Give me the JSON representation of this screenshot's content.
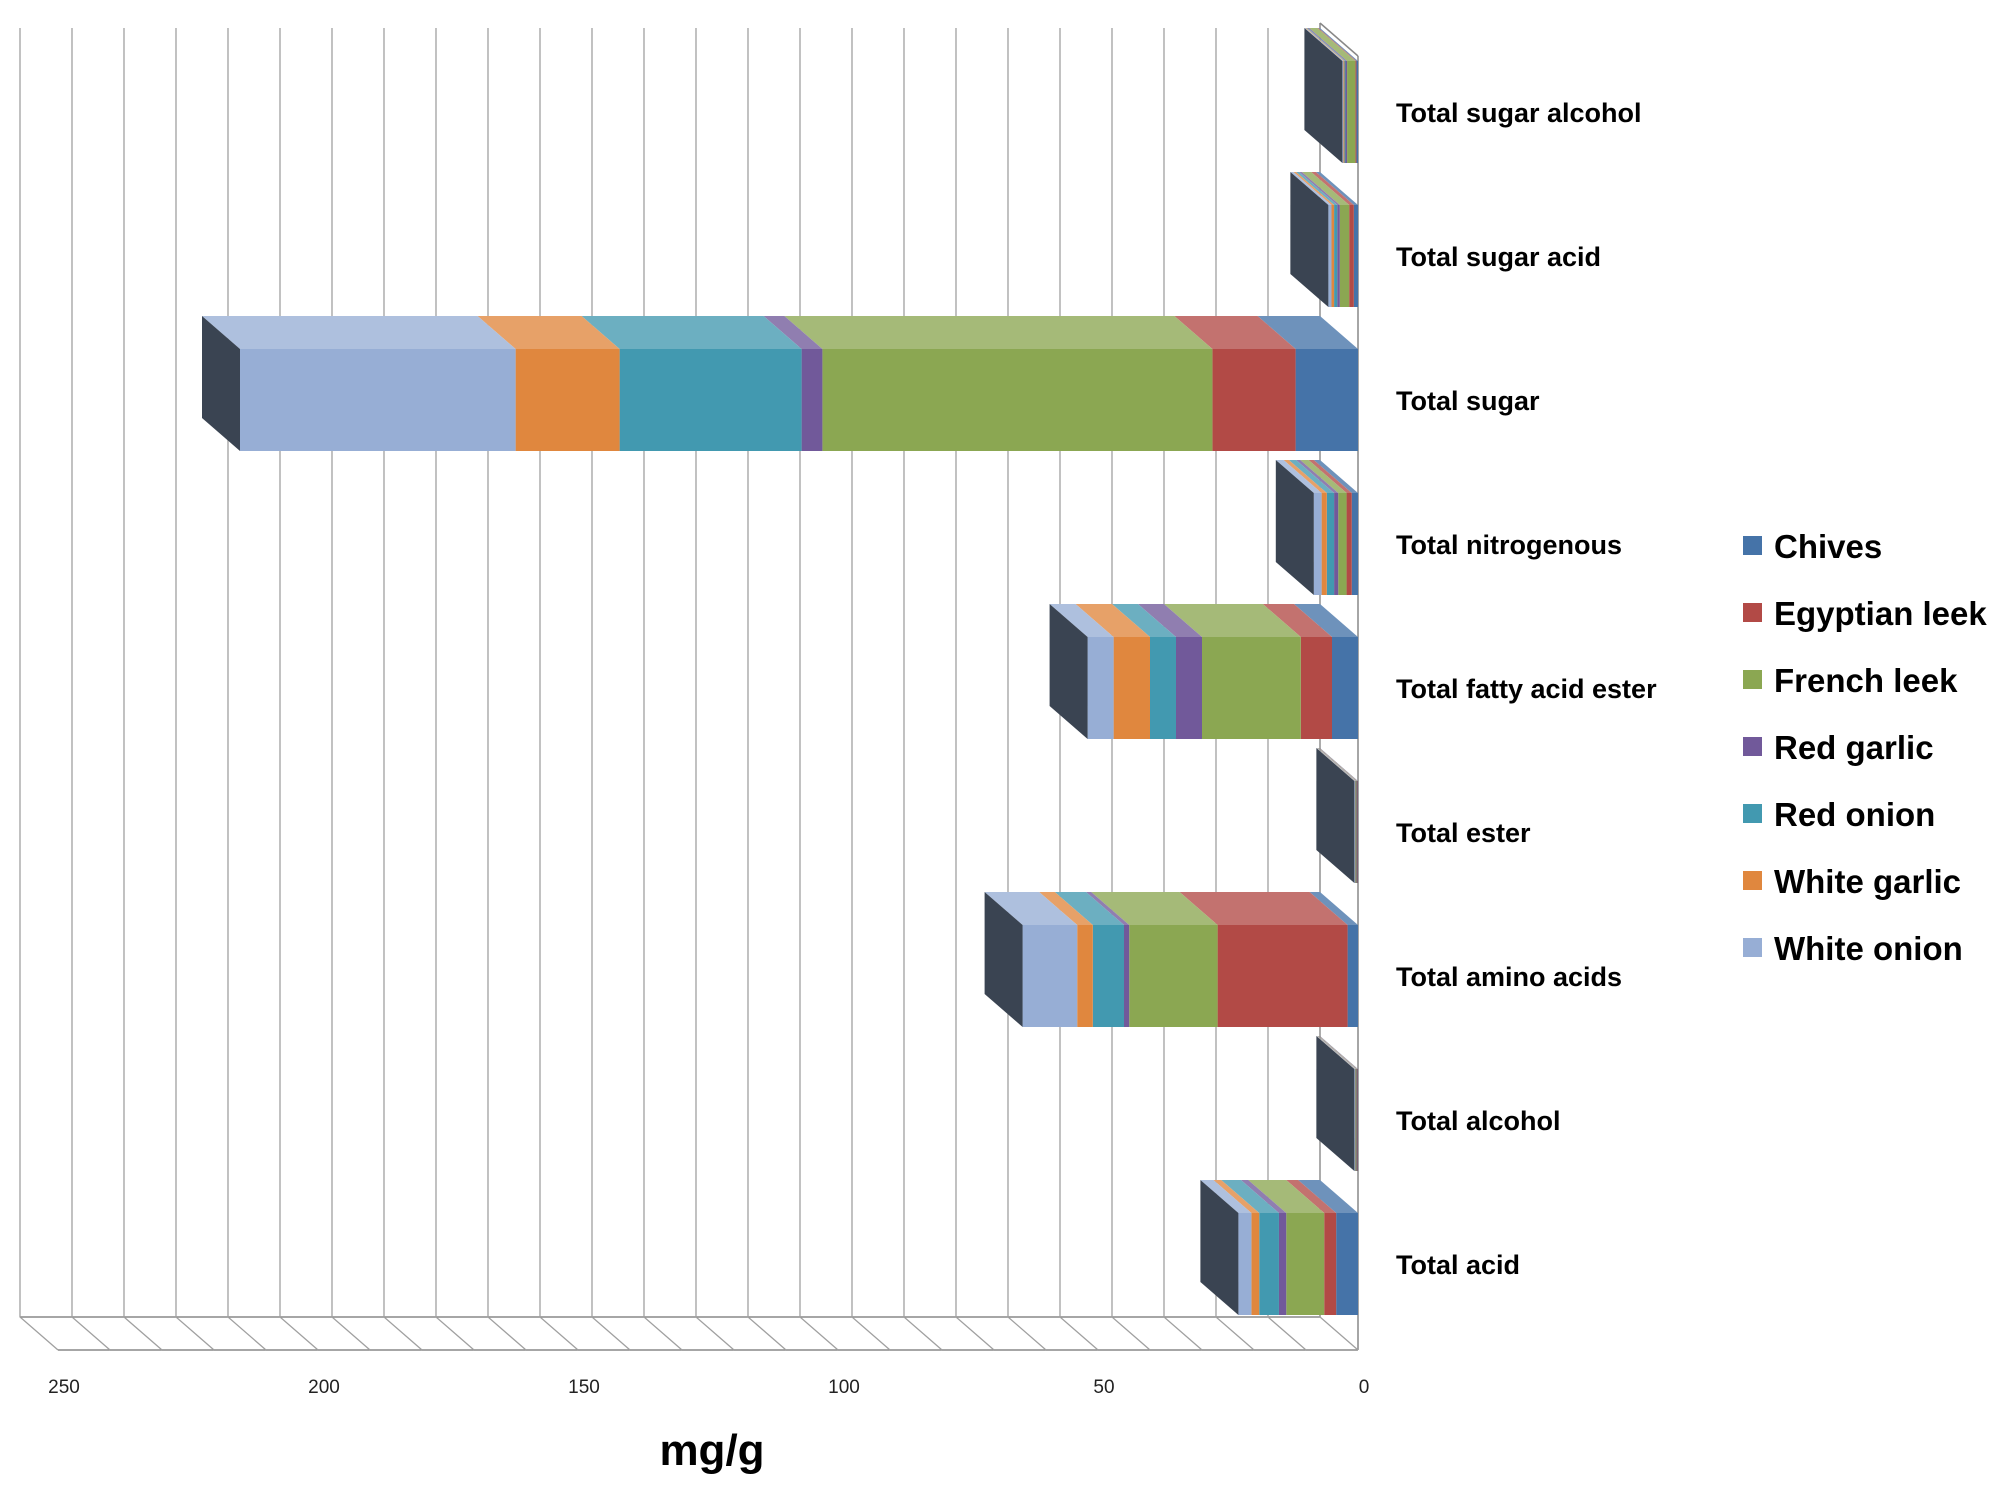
{
  "chart_data": {
    "type": "bar",
    "orientation": "horizontal",
    "stacked": true,
    "style": "3d",
    "categories": [
      "Total acid",
      "Total alcohol",
      "Total amino acids",
      "Total ester",
      "Total fatty acid ester",
      "Total nitrogenous",
      "Total sugar",
      "Total sugar acid",
      "Total sugar alcohol"
    ],
    "series": [
      {
        "name": "Chives",
        "color": "#4573a8",
        "values": [
          4.2,
          0.1,
          2.0,
          0.1,
          5.0,
          1.2,
          12.0,
          0.8,
          0.3
        ]
      },
      {
        "name": "Egyptian leek",
        "color": "#b24a46",
        "values": [
          2.3,
          0.1,
          25.0,
          0.1,
          6.0,
          1.0,
          16.0,
          0.9,
          0.2
        ]
      },
      {
        "name": "French leek",
        "color": "#8ba752",
        "values": [
          7.3,
          0.1,
          17.0,
          0.1,
          19.0,
          1.6,
          75.0,
          1.8,
          1.6
        ]
      },
      {
        "name": "Red garlic",
        "color": "#71599a",
        "values": [
          1.4,
          0.1,
          1.0,
          0.1,
          5.0,
          0.8,
          4.0,
          0.5,
          0.3
        ]
      },
      {
        "name": "Red onion",
        "color": "#4299b0",
        "values": [
          3.8,
          0.1,
          6.0,
          0.1,
          5.0,
          1.4,
          35.0,
          0.6,
          0.2
        ]
      },
      {
        "name": "White garlic",
        "color": "#e0873e",
        "values": [
          1.5,
          0.1,
          3.0,
          0.1,
          7.0,
          1.0,
          20.0,
          0.5,
          0.2
        ]
      },
      {
        "name": "White onion",
        "color": "#97aed5",
        "values": [
          2.5,
          0.1,
          10.5,
          0.1,
          5.0,
          1.5,
          53.0,
          0.6,
          0.2
        ]
      }
    ],
    "xlabel": "mg/g",
    "ylabel": "",
    "xlim": [
      0,
      250
    ],
    "x_reversed": true,
    "xticks": [
      "250",
      "200",
      "150",
      "100",
      "50",
      "0"
    ],
    "xtick_values": [
      250,
      200,
      150,
      100,
      50,
      0
    ],
    "grid": true,
    "legend_position": "right"
  }
}
